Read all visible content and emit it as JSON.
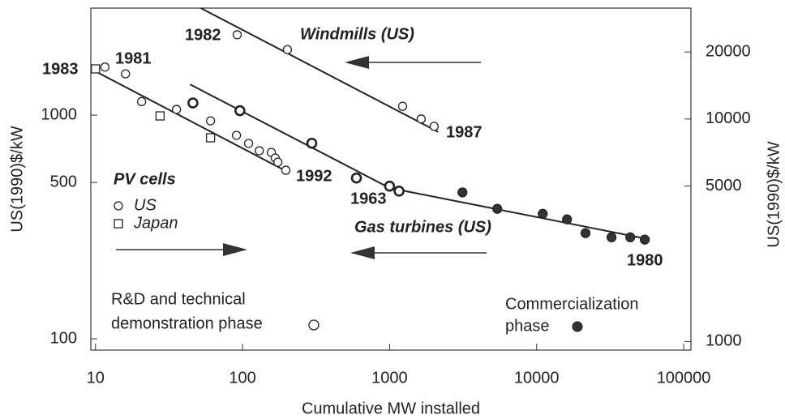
{
  "chart_data": {
    "type": "scatter",
    "xscale": "log",
    "yscale": "log",
    "xlabel": "Cumulative MW installed",
    "ylabel": "US(1990)$/kW",
    "y2label": "US(1990)$/kW",
    "xlim": [
      9.3,
      112000
    ],
    "ylim": [
      89,
      3010
    ],
    "y2lim": [
      915,
      31500
    ],
    "xticks": [
      10,
      100,
      1000,
      10000,
      100000
    ],
    "yticks": [
      100,
      500,
      1000
    ],
    "y2ticks": [
      1000,
      5000,
      10000,
      20000
    ],
    "color": "#222222",
    "legend_title": "PV cells",
    "series": [
      {
        "name": "US",
        "marker": "circle",
        "x": [
          11.6,
          16,
          20.6,
          35.6,
          60.6,
          91,
          110,
          130,
          157,
          167,
          174,
          197
        ],
        "values": [
          1640,
          1530,
          1150,
          1060,
          943,
          812,
          747,
          693,
          681,
          643,
          616,
          567
        ]
      },
      {
        "name": "Japan",
        "marker": "square",
        "x": [
          10,
          27.5,
          60.6
        ],
        "values": [
          1610,
          992,
          792
        ]
      },
      {
        "name": "Windmills (US)",
        "marker": "circle",
        "axis": "y2",
        "x": [
          92,
          202,
          1226,
          1640,
          2010
        ],
        "values": [
          23900,
          20500,
          11400,
          10000,
          9270
        ]
      },
      {
        "name": "Gas turbines (US)",
        "marker": "bold-circle",
        "axis": "y2",
        "x": [
          46,
          96,
          296,
          595,
          1000,
          1160,
          3130,
          5400,
          11000,
          16100,
          21500,
          32300,
          43300,
          54400
        ],
        "values": [
          11800,
          10900,
          7780,
          5430,
          4990,
          4740,
          4680,
          3950,
          3750,
          3540,
          3070,
          2940,
          2940,
          2870
        ],
        "filled": [
          false,
          false,
          false,
          false,
          false,
          false,
          true,
          true,
          true,
          true,
          true,
          true,
          true,
          true
        ]
      }
    ],
    "trend_lines": [
      {
        "x": [
          9.3,
          202
        ],
        "values": [
          1610,
          558
        ]
      },
      {
        "axis": "y2",
        "x": [
          52,
          2140
        ],
        "values": [
          31500,
          8750
        ]
      },
      {
        "axis": "y2",
        "x": [
          44,
          1000,
          55100
        ],
        "values": [
          14300,
          4900,
          2900
        ]
      }
    ],
    "annotations": {
      "years": [
        "1983",
        "1981",
        "1982",
        "1987",
        "1992",
        "1963",
        "1980"
      ],
      "rd_phase": [
        "R&D and technical",
        "demonstration phase"
      ],
      "commercial_phase": [
        "Commercialization",
        "phase"
      ]
    }
  }
}
